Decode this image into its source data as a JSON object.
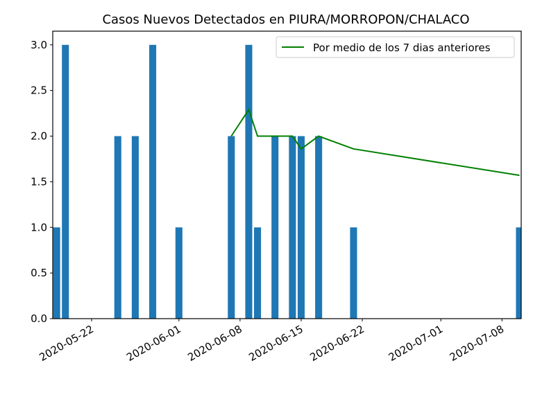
{
  "chart_data": {
    "type": "bar",
    "title": "Casos Nuevos Detectados en PIURA/MORROPON/CHALACO",
    "xlabel": "",
    "ylabel": "",
    "ylim": [
      0,
      3.15
    ],
    "xlim": [
      "2020-05-18",
      "2020-07-10"
    ],
    "y_ticks": [
      "0.0",
      "0.5",
      "1.0",
      "1.5",
      "2.0",
      "2.5",
      "3.0"
    ],
    "x_ticks": [
      "2020-05-22",
      "2020-06-01",
      "2020-06-08",
      "2020-06-15",
      "2020-06-22",
      "2020-07-01",
      "2020-07-08"
    ],
    "grid": false,
    "legend_position": "top-right",
    "bar_color": "#1f77b4",
    "bars": {
      "dates": [
        "2020-05-18",
        "2020-05-19",
        "2020-05-25",
        "2020-05-27",
        "2020-05-29",
        "2020-06-01",
        "2020-06-07",
        "2020-06-09",
        "2020-06-10",
        "2020-06-12",
        "2020-06-14",
        "2020-06-15",
        "2020-06-17",
        "2020-06-21",
        "2020-07-10"
      ],
      "values": [
        1,
        3,
        2,
        2,
        3,
        1,
        2,
        3,
        1,
        2,
        2,
        2,
        2,
        1,
        1
      ]
    },
    "series": [
      {
        "name": "Por medio de los 7 dias anteriores",
        "color": "#008000",
        "x": [
          "2020-06-07",
          "2020-06-09",
          "2020-06-10",
          "2020-06-14",
          "2020-06-15",
          "2020-06-17",
          "2020-06-21",
          "2020-07-10"
        ],
        "values": [
          2.0,
          2.29,
          2.0,
          2.0,
          1.86,
          2.0,
          1.86,
          1.57
        ]
      }
    ]
  }
}
